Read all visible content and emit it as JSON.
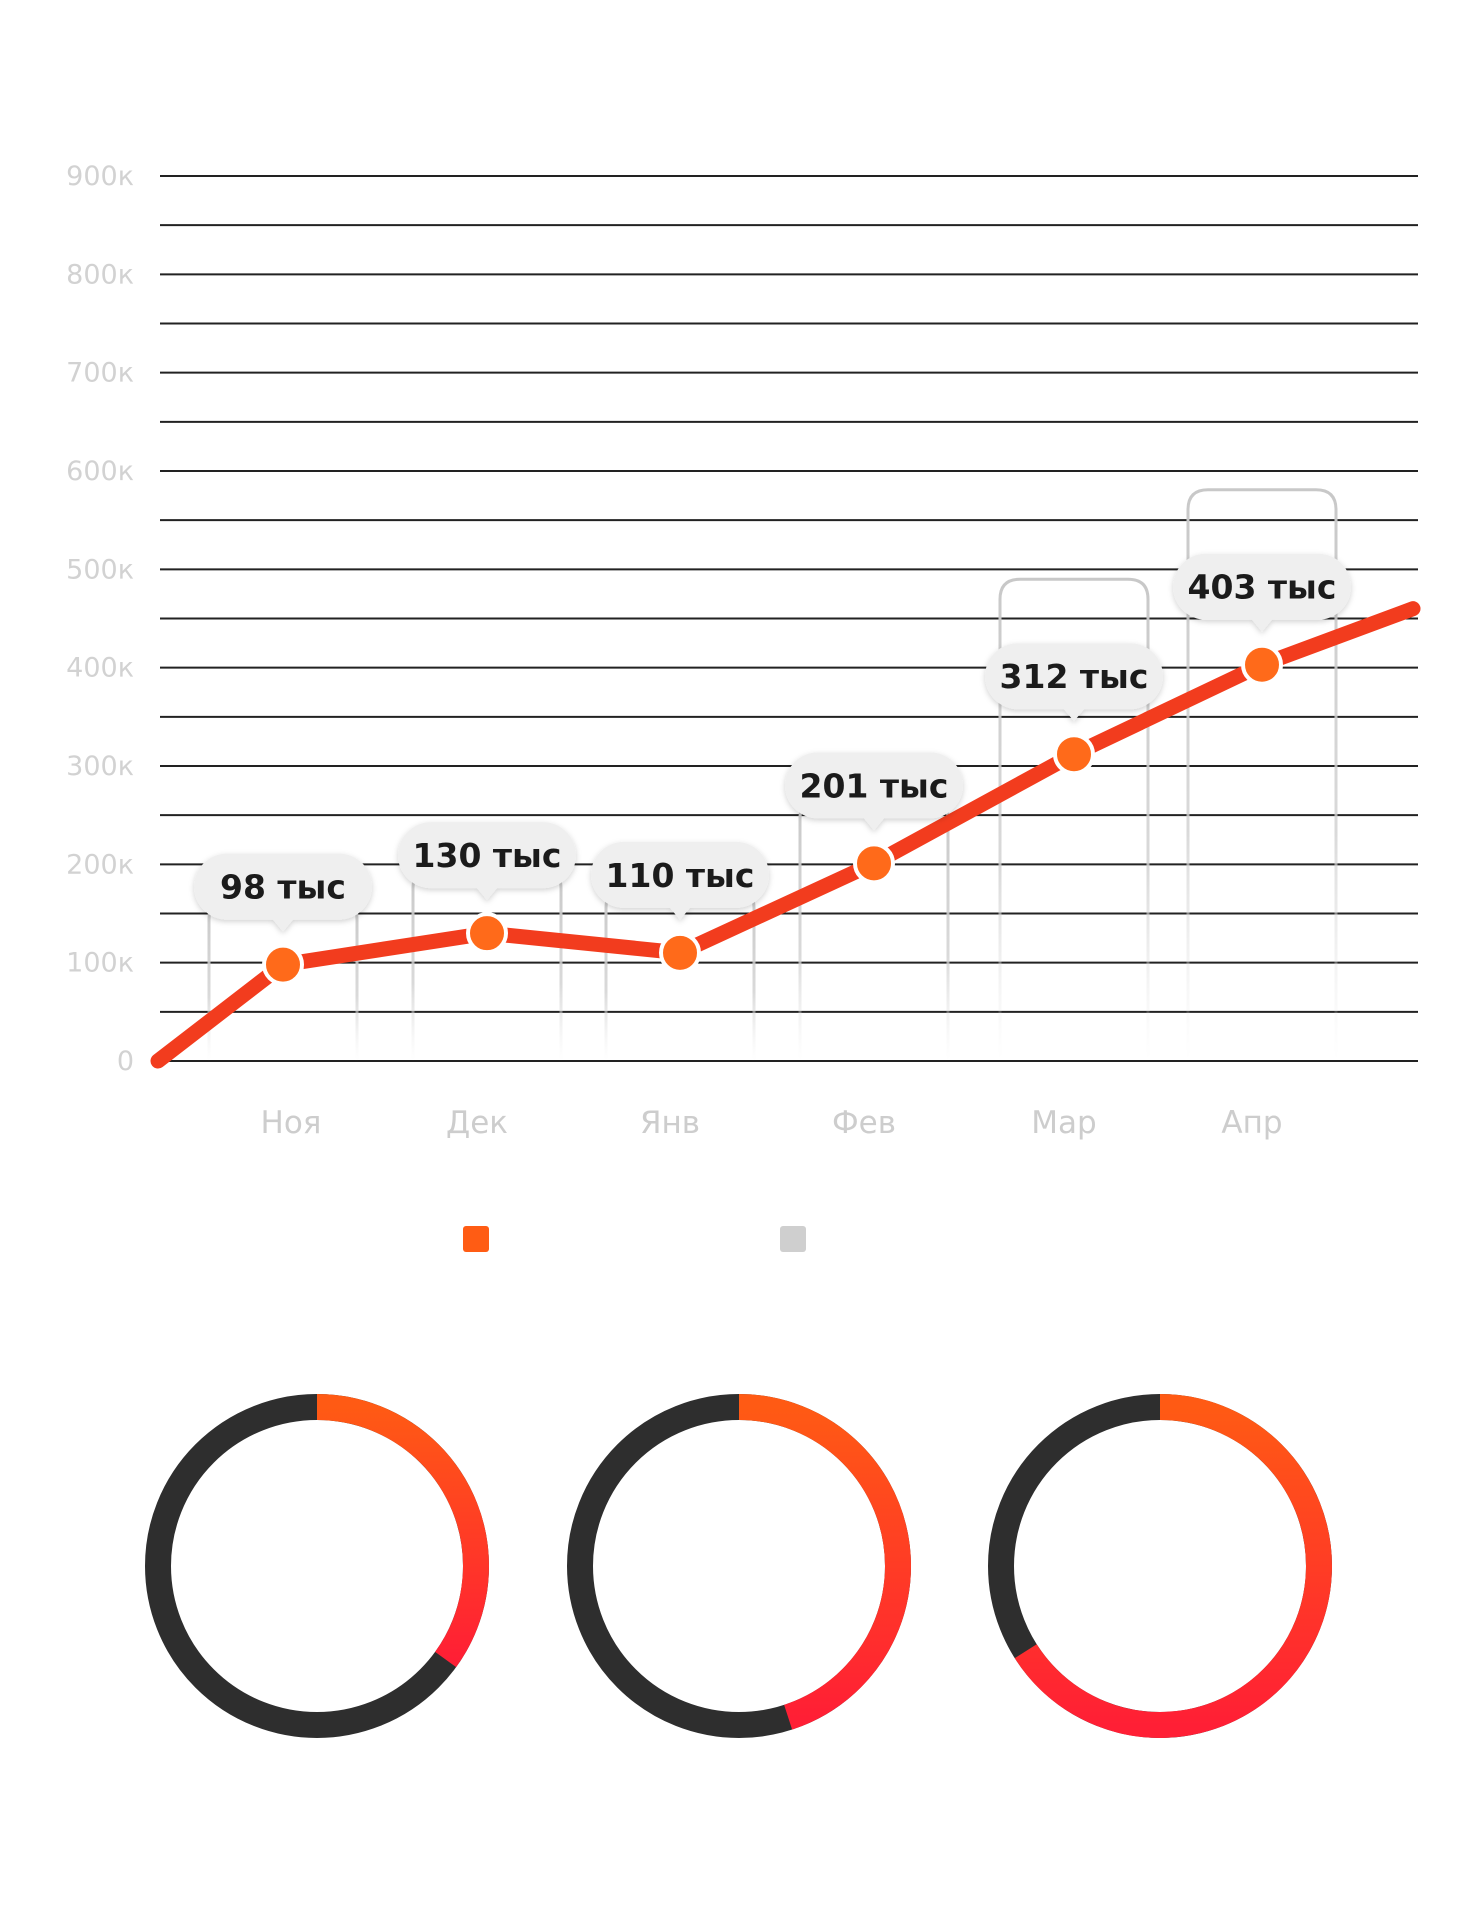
{
  "chart_data": [
    {
      "type": "line",
      "categories": [
        "Ноя",
        "Дек",
        "Янв",
        "Фев",
        "Мар",
        "Апр"
      ],
      "series": [
        {
          "values": [
            98000,
            130000,
            110000,
            201000,
            312000,
            403000
          ],
          "point_labels": [
            "98 тыс",
            "130 тыс",
            "110 тыс",
            "201 тыс",
            "312 тыс",
            "403 тыс"
          ]
        }
      ],
      "line_start": 0,
      "line_end": 460000,
      "y_tick_values": [
        0,
        100000,
        200000,
        300000,
        400000,
        500000,
        600000,
        700000,
        800000,
        900000
      ],
      "y_tick_labels": [
        "0",
        "100к",
        "200к",
        "300к",
        "400к",
        "500к",
        "600к",
        "700к",
        "800к",
        "900к"
      ],
      "ylim": [
        0,
        900000
      ],
      "grid": true,
      "grid_step": 50000,
      "legend_position": "bottom-center",
      "colors": {
        "line": "#f23c1e",
        "marker": "#ff6a1a",
        "grid": "#222222",
        "bracket": "#c8c8c8"
      }
    },
    {
      "type": "pie",
      "variant": "donut",
      "charts": [
        {
          "fraction": 0.35
        },
        {
          "fraction": 0.45
        },
        {
          "fraction": 0.66
        }
      ],
      "colors": {
        "highlight_start": "#ff5a14",
        "highlight_end": "#ff1f35",
        "remainder": "#2e2e2e"
      }
    }
  ],
  "legend": [
    {
      "color": "#ff5c14"
    },
    {
      "color": "#cfcfcf"
    }
  ]
}
